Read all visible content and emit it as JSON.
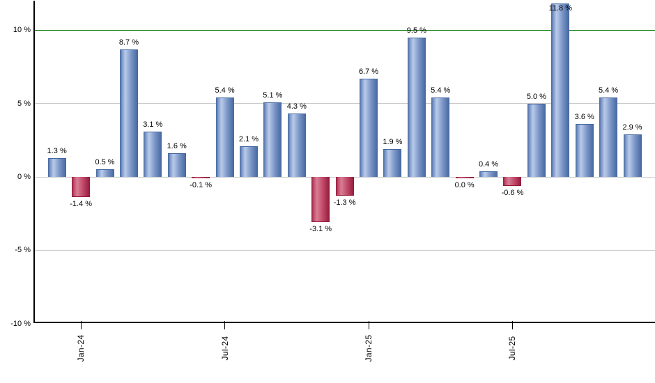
{
  "page": {
    "background": "#ffffff"
  },
  "chart_data": {
    "type": "bar",
    "title": "",
    "xlabel": "",
    "ylabel": "",
    "unit": "%",
    "ylim": [
      -10,
      12.3
    ],
    "grid": true,
    "legend": "none",
    "bars": [
      {
        "value": 1.3,
        "label": "1.3 %",
        "color": "positive"
      },
      {
        "value": -1.4,
        "label": "-1.4 %",
        "color": "negative"
      },
      {
        "value": 0.5,
        "label": "0.5 %",
        "color": "positive"
      },
      {
        "value": 8.7,
        "label": "8.7 %",
        "color": "positive"
      },
      {
        "value": 3.1,
        "label": "3.1 %",
        "color": "positive"
      },
      {
        "value": 1.6,
        "label": "1.6 %",
        "color": "positive"
      },
      {
        "value": -0.1,
        "label": "-0.1 %",
        "color": "negative"
      },
      {
        "value": 5.4,
        "label": "5.4 %",
        "color": "positive"
      },
      {
        "value": 2.1,
        "label": "2.1 %",
        "color": "positive"
      },
      {
        "value": 5.1,
        "label": "5.1 %",
        "color": "positive"
      },
      {
        "value": 4.3,
        "label": "4.3 %",
        "color": "positive"
      },
      {
        "value": -3.1,
        "label": "-3.1 %",
        "color": "negative"
      },
      {
        "value": -1.3,
        "label": "-1.3 %",
        "color": "negative"
      },
      {
        "value": 6.7,
        "label": "6.7 %",
        "color": "positive"
      },
      {
        "value": 1.9,
        "label": "1.9 %",
        "color": "positive"
      },
      {
        "value": 9.5,
        "label": "9.5 %",
        "color": "positive"
      },
      {
        "value": 5.4,
        "label": "5.4 %",
        "color": "positive"
      },
      {
        "value": 0.0,
        "label": "0.0 %",
        "color": "negative"
      },
      {
        "value": 0.4,
        "label": "0.4 %",
        "color": "positive"
      },
      {
        "value": -0.6,
        "label": "-0.6 %",
        "color": "negative"
      },
      {
        "value": 5.0,
        "label": "5.0 %",
        "color": "positive"
      },
      {
        "value": 11.8,
        "label": "11.8 %",
        "color": "positive"
      },
      {
        "value": 3.6,
        "label": "3.6 %",
        "color": "positive"
      },
      {
        "value": 5.4,
        "label": "5.4 %",
        "color": "positive"
      },
      {
        "value": 2.9,
        "label": "2.9 %",
        "color": "positive"
      }
    ],
    "x_ticks": [
      {
        "label": "Jan-24",
        "bar_index": 1
      },
      {
        "label": "Jul-24",
        "bar_index": 7
      },
      {
        "label": "Jan-25",
        "bar_index": 13
      },
      {
        "label": "Jul-25",
        "bar_index": 19
      }
    ],
    "y_ticks": [
      {
        "value": 10,
        "label": "10 %",
        "line": "threshold"
      },
      {
        "value": 5,
        "label": "5 %",
        "line": "grid"
      },
      {
        "value": 0,
        "label": "0 %",
        "line": "grid"
      },
      {
        "value": -5,
        "label": "-5 %",
        "line": "grid"
      },
      {
        "value": -10,
        "label": "-10 %",
        "line": "axis"
      }
    ],
    "colors": {
      "positive_base": "#7b96c8",
      "positive_light": "#b9cbe9",
      "positive_dark": "#44679e",
      "negative_base": "#c14a68",
      "negative_light": "#d87e95",
      "negative_dark": "#93193c",
      "threshold_line": "#007a00",
      "gridline": "#c9c9c9",
      "axis": "#000000",
      "label_text": "#000000"
    }
  }
}
